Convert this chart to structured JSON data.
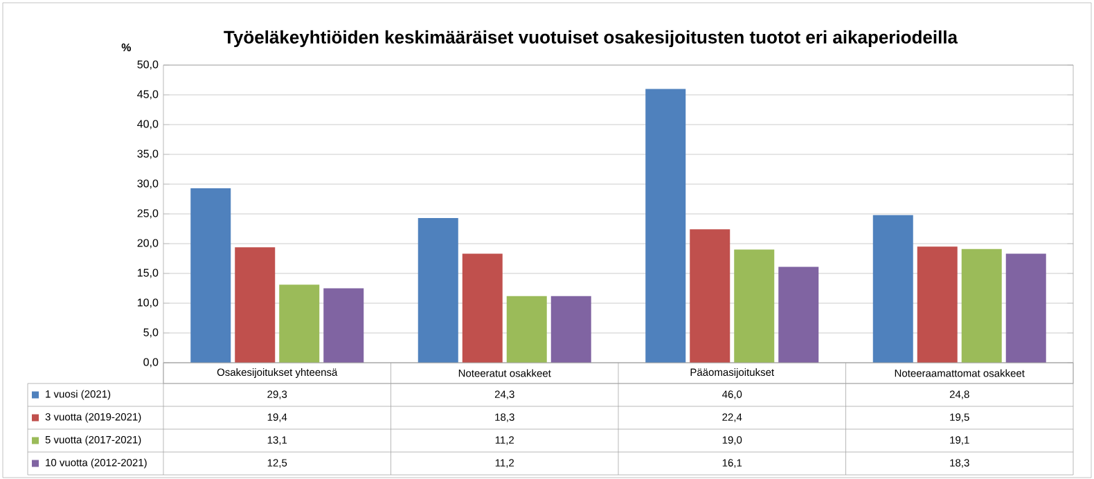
{
  "chart_data": {
    "type": "bar",
    "title": "Työeläkeyhtiöiden keskimääräiset vuotuiset osakesijoitusten tuotot eri aikaperiodeilla",
    "ylabel": "%",
    "categories": [
      "Osakesijoitukset yhteensä",
      "Noteeratut osakkeet",
      "Pääomasijoitukset",
      "Noteeraamattomat osakkeet"
    ],
    "series": [
      {
        "name": "1 vuosi (2021)",
        "color": "#4f81bd",
        "values": [
          29.3,
          24.3,
          46.0,
          24.8
        ],
        "value_labels": [
          "29,3",
          "24,3",
          "46,0",
          "24,8"
        ]
      },
      {
        "name": "3 vuotta (2019-2021)",
        "color": "#c0504d",
        "values": [
          19.4,
          18.3,
          22.4,
          19.5
        ],
        "value_labels": [
          "19,4",
          "18,3",
          "22,4",
          "19,5"
        ]
      },
      {
        "name": "5 vuotta (2017-2021)",
        "color": "#9bbb59",
        "values": [
          13.1,
          11.2,
          19.0,
          19.1
        ],
        "value_labels": [
          "13,1",
          "11,2",
          "19,0",
          "19,1"
        ]
      },
      {
        "name": "10 vuotta (2012-2021)",
        "color": "#8064a2",
        "values": [
          12.5,
          11.2,
          16.1,
          18.3
        ],
        "value_labels": [
          "12,5",
          "11,2",
          "16,1",
          "18,3"
        ]
      }
    ],
    "ylim": [
      0,
      50
    ],
    "yticks": [
      {
        "value": 0,
        "label": "0,0"
      },
      {
        "value": 5,
        "label": "5,0"
      },
      {
        "value": 10,
        "label": "10,0"
      },
      {
        "value": 15,
        "label": "15,0"
      },
      {
        "value": 20,
        "label": "20,0"
      },
      {
        "value": 25,
        "label": "25,0"
      },
      {
        "value": 30,
        "label": "30,0"
      },
      {
        "value": 35,
        "label": "35,0"
      },
      {
        "value": 40,
        "label": "40,0"
      },
      {
        "value": 45,
        "label": "45,0"
      },
      {
        "value": 50,
        "label": "50,0"
      }
    ],
    "grid": "y",
    "legend": "bottom"
  }
}
